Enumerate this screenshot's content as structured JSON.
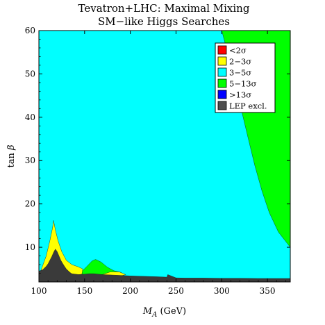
{
  "chart_data": {
    "type": "area",
    "title": [
      "Tevatron+LHC: Maximal Mixing",
      "SM−like Higgs Searches"
    ],
    "xlabel_main": "M",
    "xlabel_sub": "A",
    "xlabel_unit": " (GeV)",
    "ylabel_main": "tan ",
    "ylabel_greek": "β",
    "xlim": [
      100,
      375
    ],
    "ylim": [
      2,
      60
    ],
    "xticks": [
      "100",
      "150",
      "200",
      "250",
      "300",
      "350"
    ],
    "xtick_values": [
      100,
      150,
      200,
      250,
      300,
      350
    ],
    "yticks": [
      "10",
      "20",
      "30",
      "40",
      "50",
      "60"
    ],
    "ytick_values": [
      10,
      20,
      30,
      40,
      50,
      60
    ],
    "grid": false,
    "legend_position": "top-right",
    "legend": [
      {
        "label": "<2σ",
        "color": "#ff0000"
      },
      {
        "label": "2−3σ",
        "color": "#ffff00"
      },
      {
        "label": "3−5σ",
        "color": "#00ffff"
      },
      {
        "label": "5−13σ",
        "color": "#00ff00"
      },
      {
        "label": ">13σ",
        "color": "#0000ff"
      },
      {
        "label": "LEP excl.",
        "color": "#4d4d4d"
      }
    ],
    "regions": [
      {
        "name": "3−5σ",
        "color": "#00ffff",
        "x": [
          100,
          375,
          375,
          100
        ],
        "y": [
          2,
          2,
          60,
          60
        ]
      },
      {
        "name": "5−13σ",
        "color": "#00ff00",
        "x": [
          298,
          375,
          375,
          372,
          362,
          352,
          344,
          336,
          328,
          320,
          312,
          305,
          300
        ],
        "y": [
          60,
          60,
          10,
          10.8,
          13.5,
          18,
          23,
          29,
          36,
          43,
          50,
          56,
          60
        ]
      },
      {
        "name": "5−13σ",
        "color": "#00ff00",
        "x": [
          145,
          152,
          158,
          162,
          168,
          175,
          182,
          190,
          192,
          180,
          165,
          150,
          145
        ],
        "y": [
          4,
          5.5,
          6.8,
          7.2,
          6.6,
          5.4,
          4.6,
          4.2,
          3.6,
          3.4,
          3.4,
          3.6,
          4
        ]
      },
      {
        "name": "2−3σ",
        "color": "#ffff00",
        "x": [
          102,
          108,
          112,
          115,
          116,
          118,
          121,
          125,
          130,
          136,
          143,
          148,
          147,
          138,
          120,
          105,
          102
        ],
        "y": [
          4.5,
          8,
          11.5,
          14.5,
          16.2,
          14,
          11.5,
          9,
          7,
          6,
          5.5,
          5,
          3.8,
          3.5,
          3.4,
          3.6,
          4.5
        ]
      },
      {
        "name": "2−3σ",
        "color": "#ffff00",
        "x": [
          168,
          178,
          188,
          195,
          188,
          176,
          168
        ],
        "y": [
          3.6,
          4.3,
          4.3,
          3.7,
          3.3,
          3.3,
          3.6
        ]
      },
      {
        "name": "LEP excl.",
        "color": "#3a3a3a",
        "x": [
          100,
          104,
          106,
          108,
          110,
          112,
          114,
          116,
          118,
          120,
          122,
          124,
          126,
          128,
          130,
          132,
          134,
          136,
          140,
          144,
          150,
          155,
          160,
          165,
          170,
          180,
          190,
          200,
          215,
          230,
          240,
          241,
          250,
          260,
          280,
          300,
          320,
          340,
          360,
          375,
          375,
          100
        ],
        "y": [
          4.5,
          4.8,
          5.2,
          5.6,
          6.2,
          7.0,
          7.8,
          8.8,
          9.6,
          9.0,
          8.0,
          7.0,
          6.3,
          5.6,
          5.0,
          4.6,
          4.2,
          3.9,
          3.8,
          3.7,
          3.8,
          3.9,
          3.9,
          3.8,
          3.7,
          3.6,
          3.5,
          3.4,
          3.3,
          3.2,
          3.1,
          3.7,
          2.95,
          2.9,
          2.9,
          2.85,
          2.85,
          2.8,
          2.8,
          2.8,
          2,
          2
        ]
      }
    ]
  }
}
